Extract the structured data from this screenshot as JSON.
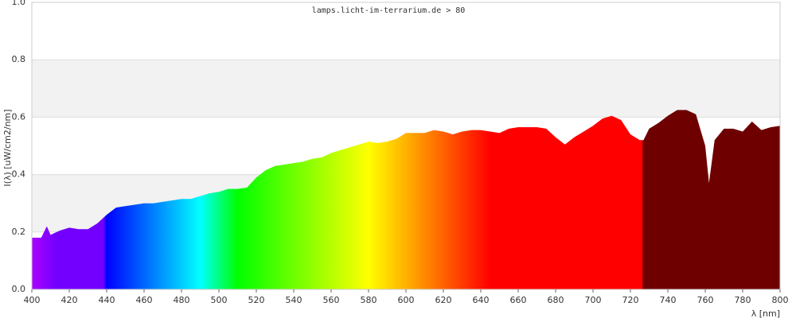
{
  "chart_data": {
    "type": "area",
    "title": "lamps.licht-im-terrarium.de > 80",
    "y_label": "I(λ)  [uW/cm2/nm]",
    "x_label": "λ [nm]",
    "x": [
      400,
      405,
      408,
      410,
      415,
      420,
      425,
      430,
      435,
      440,
      445,
      450,
      455,
      460,
      465,
      470,
      475,
      480,
      485,
      490,
      495,
      500,
      505,
      510,
      515,
      520,
      525,
      530,
      535,
      540,
      545,
      550,
      555,
      560,
      565,
      570,
      575,
      580,
      585,
      590,
      595,
      600,
      605,
      610,
      615,
      620,
      625,
      630,
      635,
      640,
      645,
      650,
      655,
      660,
      665,
      670,
      675,
      680,
      685,
      690,
      695,
      700,
      705,
      710,
      715,
      720,
      725,
      727,
      730,
      735,
      740,
      745,
      750,
      755,
      760,
      762,
      765,
      770,
      775,
      780,
      785,
      790,
      795,
      800
    ],
    "values": [
      0.18,
      0.18,
      0.22,
      0.19,
      0.205,
      0.215,
      0.21,
      0.21,
      0.23,
      0.26,
      0.285,
      0.29,
      0.295,
      0.3,
      0.3,
      0.305,
      0.31,
      0.315,
      0.315,
      0.325,
      0.335,
      0.34,
      0.35,
      0.35,
      0.355,
      0.39,
      0.415,
      0.43,
      0.435,
      0.44,
      0.445,
      0.455,
      0.46,
      0.475,
      0.485,
      0.495,
      0.505,
      0.515,
      0.51,
      0.515,
      0.525,
      0.545,
      0.545,
      0.545,
      0.555,
      0.55,
      0.54,
      0.55,
      0.555,
      0.555,
      0.55,
      0.545,
      0.56,
      0.565,
      0.565,
      0.565,
      0.56,
      0.53,
      0.505,
      0.53,
      0.55,
      0.57,
      0.595,
      0.605,
      0.59,
      0.54,
      0.52,
      0.52,
      0.56,
      0.58,
      0.605,
      0.625,
      0.625,
      0.61,
      0.5,
      0.37,
      0.52,
      0.56,
      0.56,
      0.55,
      0.585,
      0.555,
      0.565,
      0.57
    ],
    "xlim": [
      400,
      800
    ],
    "ylim": [
      0,
      1
    ],
    "xticks": [
      400,
      420,
      440,
      460,
      480,
      500,
      520,
      540,
      560,
      580,
      600,
      620,
      640,
      660,
      680,
      700,
      720,
      740,
      760,
      780,
      800
    ],
    "yticks": [
      {
        "value": 0,
        "label": "0.0"
      },
      0.2,
      0.4,
      0.6,
      0.8,
      {
        "value": 1,
        "label": "1.0"
      }
    ],
    "grid": true
  }
}
